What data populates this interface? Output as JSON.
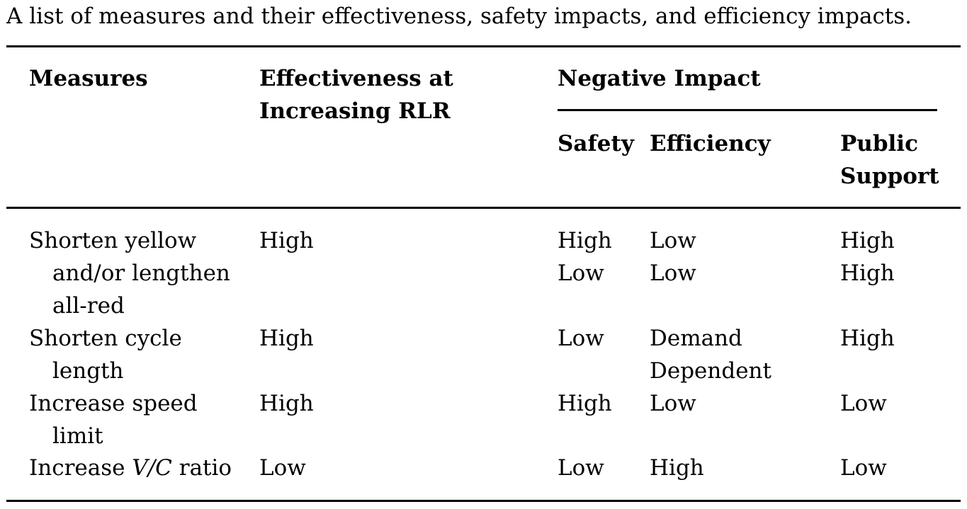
{
  "caption": "A list of measures and their effectiveness, safety impacts, and efficiency impacts.",
  "headers": {
    "measures": "Measures",
    "effectiveness_line1": "Effectiveness at",
    "effectiveness_line2": "Increasing RLR",
    "negative_impact": "Negative Impact",
    "safety": "Safety",
    "efficiency": "Efficiency",
    "public_line1": "Public",
    "public_line2": "Support"
  },
  "rows": [
    {
      "measure_lines": [
        "Shorten yellow",
        "and/or lengthen",
        "all-red"
      ],
      "effectiveness": "High",
      "safety": [
        "High",
        "Low"
      ],
      "efficiency": [
        "Low",
        "Low"
      ],
      "public_support": [
        "High",
        "High"
      ]
    },
    {
      "measure_lines": [
        "Shorten cycle",
        "length"
      ],
      "effectiveness": "High",
      "safety": [
        "Low"
      ],
      "efficiency": [
        "Demand",
        "Dependent"
      ],
      "public_support": [
        "High"
      ]
    },
    {
      "measure_lines": [
        "Increase speed",
        "limit"
      ],
      "effectiveness": "High",
      "safety": [
        "High"
      ],
      "efficiency": [
        "Low"
      ],
      "public_support": [
        "Low"
      ]
    },
    {
      "measure_prefix": "Increase ",
      "measure_italic": "V/C",
      "measure_suffix": " ratio",
      "effectiveness": "Low",
      "safety": [
        "Low"
      ],
      "efficiency": [
        "High"
      ],
      "public_support": [
        "Low"
      ]
    }
  ]
}
